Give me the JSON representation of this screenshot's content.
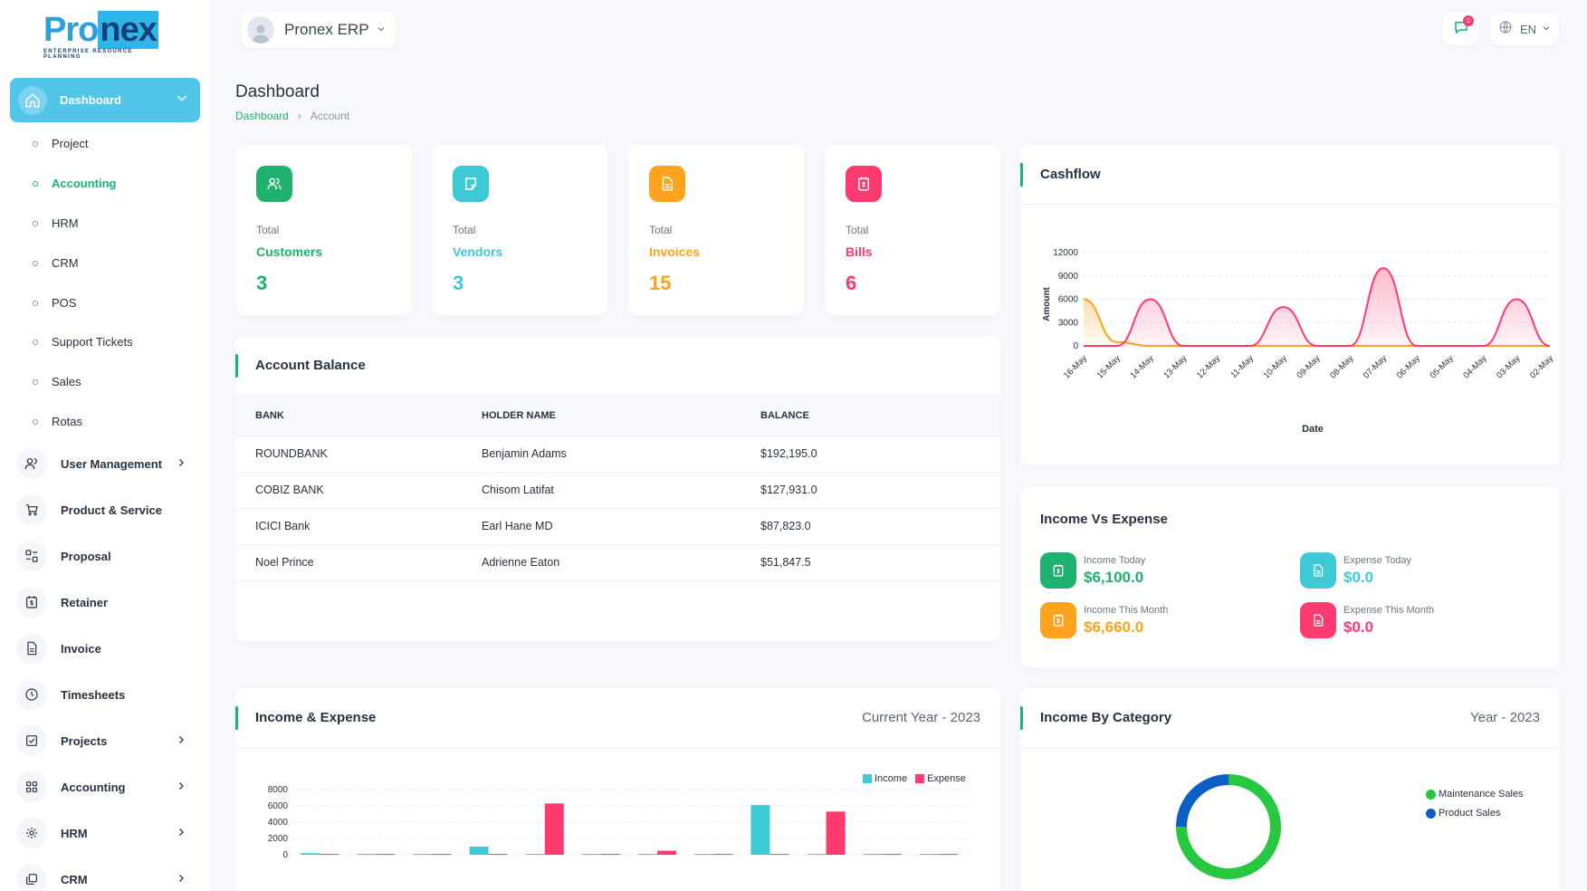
{
  "brand": {
    "logo_text_a": "Pro",
    "logo_text_b": "nex",
    "logo_tagline": "ENTERPRISE RESOURCE PLANNING",
    "workspace": "Pronex ERP"
  },
  "header": {
    "notification_count": "0",
    "language": "EN"
  },
  "sidebar": {
    "active": {
      "label": "Dashboard"
    },
    "sub_items": [
      {
        "label": "Project"
      },
      {
        "label": "Accounting"
      },
      {
        "label": "HRM"
      },
      {
        "label": "CRM"
      },
      {
        "label": "POS"
      },
      {
        "label": "Support Tickets"
      },
      {
        "label": "Sales"
      },
      {
        "label": "Rotas"
      }
    ],
    "main_items": [
      {
        "label": "User Management",
        "icon": "users-icon"
      },
      {
        "label": "Product & Service",
        "icon": "cart-icon"
      },
      {
        "label": "Proposal",
        "icon": "proposal-icon"
      },
      {
        "label": "Retainer",
        "icon": "retainer-icon"
      },
      {
        "label": "Invoice",
        "icon": "file-icon"
      },
      {
        "label": "Timesheets",
        "icon": "clock-icon"
      },
      {
        "label": "Projects",
        "icon": "checkbox-icon"
      },
      {
        "label": "Accounting",
        "icon": "grid-icon"
      },
      {
        "label": "HRM",
        "icon": "hrm-icon"
      },
      {
        "label": "CRM",
        "icon": "layers-icon"
      }
    ]
  },
  "page": {
    "title": "Dashboard",
    "breadcrumb": [
      "Dashboard",
      "Account"
    ]
  },
  "stats": [
    {
      "total": "Total",
      "name": "Customers",
      "value": "3",
      "color": "#1fb16e"
    },
    {
      "total": "Total",
      "name": "Vendors",
      "value": "3",
      "color": "#3ec9d6"
    },
    {
      "total": "Total",
      "name": "Invoices",
      "value": "15",
      "color": "#ffa21d"
    },
    {
      "total": "Total",
      "name": "Bills",
      "value": "6",
      "color": "#ff3a6e"
    }
  ],
  "account_balance": {
    "title": "Account Balance",
    "columns": [
      "BANK",
      "HOLDER NAME",
      "BALANCE"
    ],
    "rows": [
      [
        "ROUNDBANK",
        "Benjamin Adams",
        "$192,195.0"
      ],
      [
        "COBIZ BANK",
        "Chisom Latifat",
        "$127,931.0"
      ],
      [
        "ICICI Bank",
        "Earl Hane MD",
        "$87,823.0"
      ],
      [
        "Noel Prince",
        "Adrienne Eaton",
        "$51,847.5"
      ]
    ]
  },
  "cashflow_title": "Cashflow",
  "income_vs_expense": {
    "title": "Income Vs Expense",
    "items": [
      {
        "label": "Income Today",
        "value": "$6,100.0"
      },
      {
        "label": "Expense Today",
        "value": "$0.0"
      },
      {
        "label": "Income This Month",
        "value": "$6,660.0"
      },
      {
        "label": "Expense This Month",
        "value": "$0.0"
      }
    ]
  },
  "income_expense_card": {
    "title": "Income & Expense",
    "period": "Current Year - 2023"
  },
  "income_category_card": {
    "title": "Income By Category",
    "period": "Year - 2023"
  },
  "chart_data": [
    {
      "type": "area",
      "title": "Cashflow",
      "xlabel": "Date",
      "ylabel": "Amount",
      "ylim": [
        0,
        12000
      ],
      "yticks": [
        "12000",
        "9000",
        "6000",
        "3000",
        "0"
      ],
      "categories": [
        "16-May",
        "15-May",
        "14-May",
        "13-May",
        "12-May",
        "11-May",
        "10-May",
        "09-May",
        "08-May",
        "07-May",
        "06-May",
        "05-May",
        "04-May",
        "03-May",
        "02-May"
      ],
      "series": [
        {
          "values": [
            6000,
            500,
            0,
            0,
            0,
            0,
            0,
            0,
            0,
            0,
            0,
            0,
            0,
            0,
            0
          ],
          "color": "#ffa21d"
        },
        {
          "values": [
            0,
            0,
            6000,
            0,
            0,
            0,
            5000,
            0,
            0,
            10000,
            0,
            0,
            0,
            6000,
            0
          ],
          "color": "#ff3a6e"
        }
      ],
      "grid": true
    },
    {
      "type": "bar",
      "title": "Income & Expense",
      "ylim": [
        0,
        8000
      ],
      "yticks": [
        "8000",
        "6000",
        "4000",
        "2000",
        "0"
      ],
      "legend": "top-right",
      "series": [
        {
          "name": "Income",
          "values": [
            200,
            100,
            100,
            1000,
            100,
            100,
            100,
            100,
            6100,
            100,
            100,
            100
          ],
          "color": "#3ec9d6"
        },
        {
          "name": "Expense",
          "values": [
            100,
            100,
            100,
            100,
            6300,
            100,
            500,
            100,
            100,
            5300,
            100,
            100
          ],
          "color": "#ff3a6e"
        }
      ],
      "grid": true
    },
    {
      "type": "pie",
      "title": "Income By Category",
      "legend": "right",
      "series": [
        {
          "name": "Maintenance Sales",
          "value": 75,
          "color": "#28c740"
        },
        {
          "name": "Product Sales",
          "value": 25,
          "color": "#0c5fc5"
        }
      ]
    }
  ]
}
